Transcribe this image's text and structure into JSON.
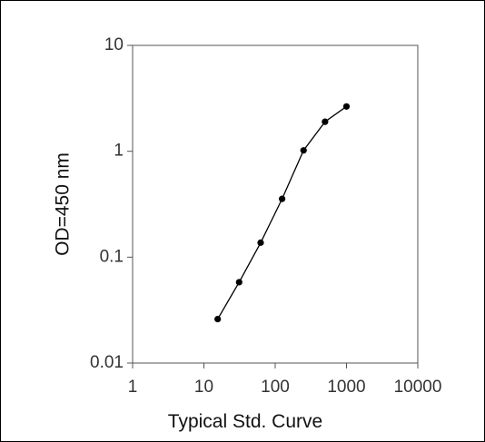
{
  "chart_data": {
    "type": "line",
    "title": "",
    "xlabel": "Typical Std. Curve",
    "ylabel": "OD=450 nm",
    "x_scale": "log",
    "y_scale": "log",
    "xlim": [
      1,
      10000
    ],
    "ylim": [
      0.01,
      10
    ],
    "x_ticks": [
      "1",
      "10",
      "100",
      "1000",
      "10000"
    ],
    "y_ticks": [
      "10",
      "1",
      "0.1",
      "0.01"
    ],
    "grid": false,
    "legend": "none",
    "series": [
      {
        "x": [
          15.6,
          31.2,
          62.5,
          125,
          250,
          500,
          1000
        ],
        "y": [
          0.026,
          0.058,
          0.137,
          0.355,
          1.02,
          1.9,
          2.65
        ],
        "color": "#000000"
      }
    ]
  }
}
